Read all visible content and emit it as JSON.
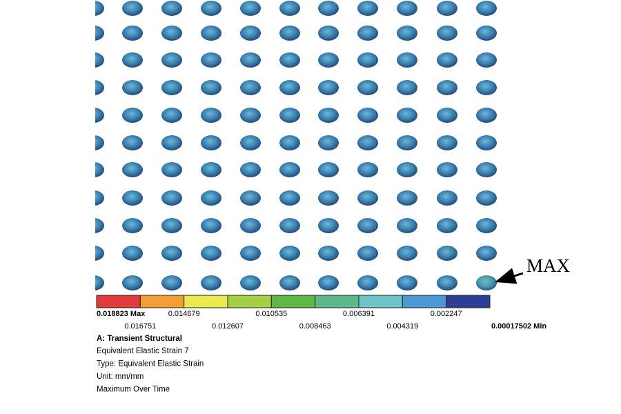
{
  "legend": {
    "labels": [
      "0.018823 Max",
      "0.016751",
      "0.014679",
      "0.012607",
      "0.010535",
      "0.008463",
      "0.006391",
      "0.004319",
      "0.002247",
      "0.00017502 Min"
    ],
    "colors": [
      "#e23b3b",
      "#f0a035",
      "#e9e84c",
      "#a6d044",
      "#5fb844",
      "#5db98c",
      "#6ec4c6",
      "#4c98d6",
      "#2c3f96"
    ]
  },
  "info": {
    "title": "A: Transient Structural",
    "lines": [
      "Equivalent Elastic Strain 7",
      "Type: Equivalent Elastic Strain",
      "Unit: mm/mm",
      "Maximum Over Time"
    ]
  },
  "annotation": "MAX"
}
